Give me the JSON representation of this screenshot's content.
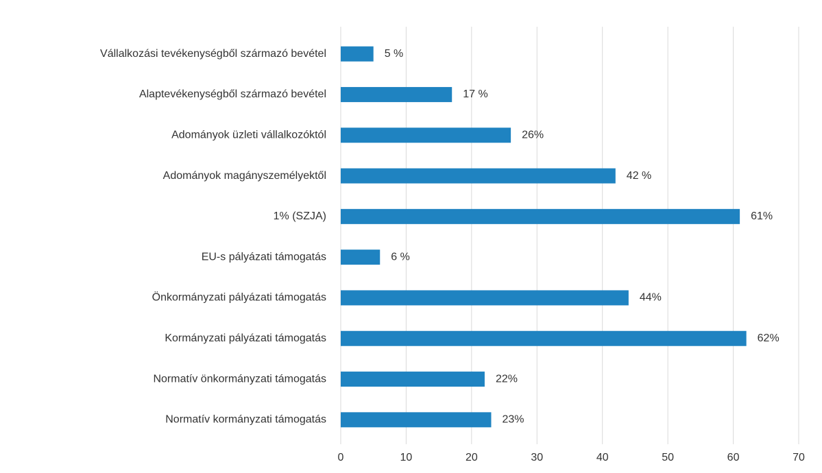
{
  "chart_data": {
    "type": "bar",
    "orientation": "horizontal",
    "categories": [
      "Vállalkozási tevékenységből származó bevétel",
      "Alaptevékenységből származó bevétel",
      "Adományok üzleti vállalkozóktól",
      "Adományok magányszemélyektől",
      "1% (SZJA)",
      "EU-s pályázati támogatás",
      "Önkormányzati pályázati támogatás",
      "Kormányzati pályázati támogatás",
      "Normatív önkormányzati támogatás",
      "Normatív kormányzati támogatás"
    ],
    "values": [
      5,
      17,
      26,
      42,
      61,
      6,
      44,
      62,
      22,
      23
    ],
    "value_labels": [
      "5 %",
      "17 %",
      "26%",
      "42 %",
      "61%",
      "6 %",
      "44%",
      "62%",
      "22%",
      "23%"
    ],
    "color": "#1f83c1",
    "xlim": [
      0,
      70
    ],
    "xticks": [
      0,
      10,
      20,
      30,
      40,
      50,
      60,
      70
    ],
    "grid": true
  }
}
